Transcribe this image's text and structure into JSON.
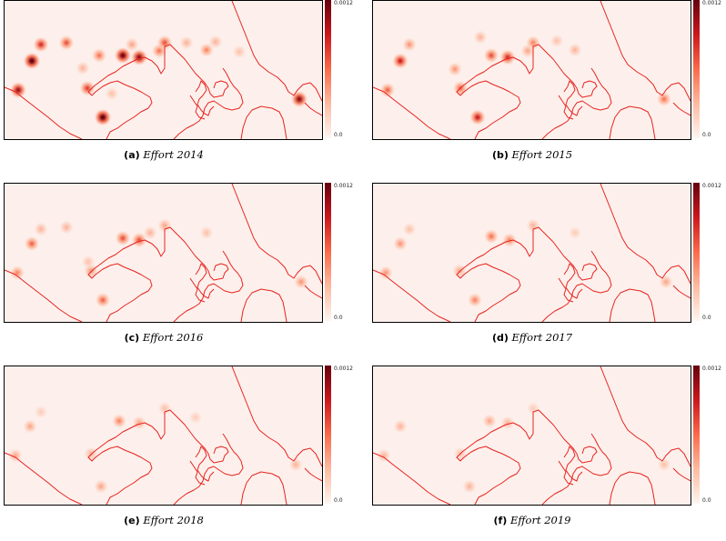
{
  "figure": {
    "colorbar": {
      "max_label": "0.0012",
      "min_label": "0.0",
      "colormap": [
        "#fff5f0",
        "#fcbba1",
        "#fb6a4a",
        "#cb181d",
        "#67000d"
      ]
    },
    "border_color": "#e8231f",
    "background_color": "#fdf0ec",
    "panels": [
      {
        "label": "(a)",
        "title": "Effort 2014"
      },
      {
        "label": "(b)",
        "title": "Effort 2015"
      },
      {
        "label": "(c)",
        "title": "Effort 2016"
      },
      {
        "label": "(d)",
        "title": "Effort 2017"
      },
      {
        "label": "(e)",
        "title": "Effort 2018"
      },
      {
        "label": "(f)",
        "title": "Effort 2019"
      }
    ]
  }
}
